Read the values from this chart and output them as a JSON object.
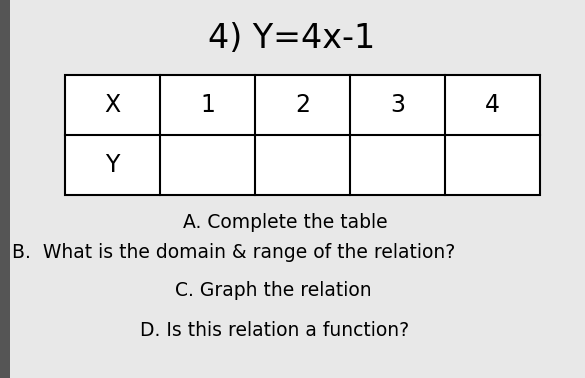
{
  "title": "4) Y=4x-1",
  "title_fontsize": 24,
  "background_color": "#d8d8d8",
  "paper_color": "#e8e8e8",
  "table_x_values": [
    "X",
    "1",
    "2",
    "3",
    "4"
  ],
  "table_y_values": [
    "Y",
    "",
    "",
    "",
    ""
  ],
  "table_fontsize": 17,
  "line_A": "A. Complete the table",
  "line_B": "B.  What is the domain & range of the relation?",
  "line_C": "C. Graph the relation",
  "line_D": "D. Is this relation a function?",
  "text_fontsize": 13.5
}
